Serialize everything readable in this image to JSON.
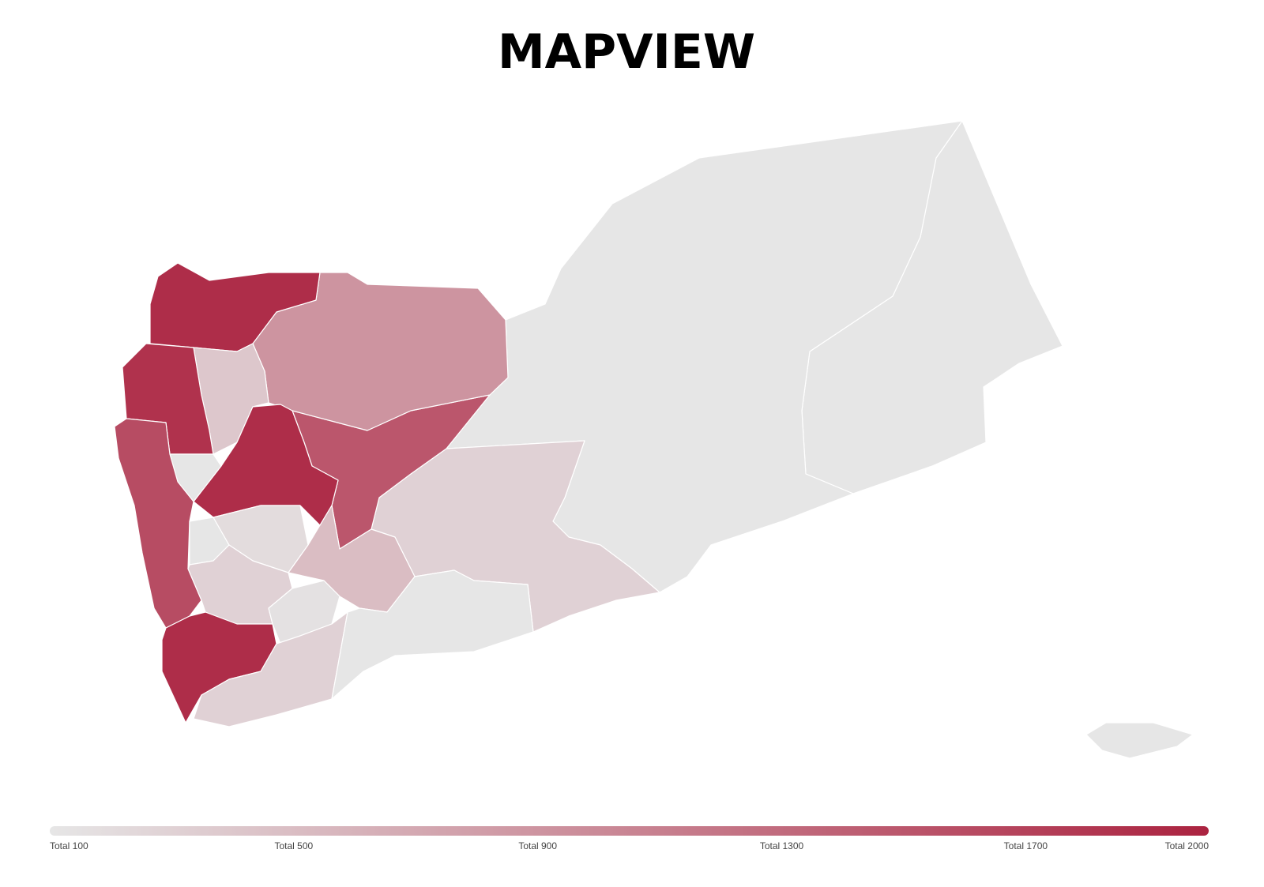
{
  "title": "MAPVIEW",
  "map": {
    "type": "choropleth",
    "region_values": [
      100,
      100,
      300,
      1500,
      900,
      1900,
      400,
      1850,
      1900,
      100,
      1600,
      100,
      200,
      300,
      500,
      150,
      1900,
      300,
      100,
      100
    ],
    "color_low": "#e6e6e6",
    "color_high": "#ab2340",
    "legend_lim": [
      100,
      2000
    ],
    "legend_ticks": [
      {
        "value": 100,
        "label": "Total 100"
      },
      {
        "value": 500,
        "label": "Total 500"
      },
      {
        "value": 900,
        "label": "Total 900"
      },
      {
        "value": 1300,
        "label": "Total 1300"
      },
      {
        "value": 1700,
        "label": "Total 1700"
      },
      {
        "value": 2000,
        "label": "Total 2000"
      }
    ]
  }
}
